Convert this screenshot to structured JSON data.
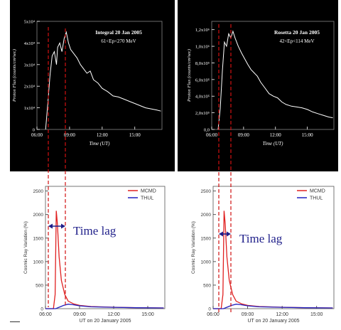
{
  "chart_data": [
    {
      "type": "line",
      "panel": "top-left",
      "title": "Integral 20 Jan 2005",
      "subtitle": "61<Ep<270 MeV",
      "xlabel": "Time (UT)",
      "ylabel": "Proton Flux (counts/cm²sec)",
      "x_ticks": [
        "06:00",
        "09:00",
        "12:00",
        "15:00"
      ],
      "y_ticks": [
        "0",
        "1x10⁴",
        "2x10⁴",
        "3x10⁴",
        "4x10⁴",
        "5x10⁴"
      ],
      "xlim": [
        6.0,
        17.5
      ],
      "ylim": [
        0,
        50000
      ],
      "series": [
        {
          "color": "#ffffff",
          "points": [
            [
              6.8,
              0
            ],
            [
              7.0,
              12000
            ],
            [
              7.2,
              25000
            ],
            [
              7.4,
              34000
            ],
            [
              7.6,
              36000
            ],
            [
              7.8,
              30000
            ],
            [
              7.9,
              38000
            ],
            [
              8.1,
              40000
            ],
            [
              8.3,
              36000
            ],
            [
              8.5,
              42000
            ],
            [
              8.7,
              45000
            ],
            [
              8.9,
              40000
            ],
            [
              9.1,
              37000
            ],
            [
              9.4,
              35000
            ],
            [
              9.7,
              33000
            ],
            [
              10.0,
              30000
            ],
            [
              10.3,
              28000
            ],
            [
              10.6,
              26000
            ],
            [
              10.9,
              27000
            ],
            [
              11.2,
              23000
            ],
            [
              11.6,
              21500
            ],
            [
              12.0,
              19000
            ],
            [
              12.5,
              17500
            ],
            [
              13.0,
              15500
            ],
            [
              13.5,
              15000
            ],
            [
              14.0,
              14000
            ],
            [
              14.5,
              13000
            ],
            [
              15.0,
              12000
            ],
            [
              15.5,
              11000
            ],
            [
              16.0,
              10000
            ],
            [
              16.5,
              9500
            ],
            [
              17.0,
              9000
            ],
            [
              17.4,
              8500
            ]
          ]
        }
      ]
    },
    {
      "type": "line",
      "panel": "top-right",
      "title": "Rosetta 20 Jan 2005",
      "subtitle": "42<Ep<114 MeV",
      "xlabel": "Time (UT)",
      "ylabel": "Proton Flux (counts/cm²sec)",
      "x_ticks": [
        "06:00",
        "09:00",
        "12:00",
        "15:00"
      ],
      "y_ticks": [
        "0,0",
        "2,0x10⁵",
        "4,0x10⁵",
        "6,0x10⁵",
        "8,0x10⁵",
        "1,0x10⁶",
        "1,2x10⁶"
      ],
      "xlim": [
        6.0,
        17.5
      ],
      "ylim": [
        0,
        1300000
      ],
      "series": [
        {
          "color": "#ffffff",
          "points": [
            [
              6.6,
              0
            ],
            [
              6.8,
              250000
            ],
            [
              7.0,
              700000
            ],
            [
              7.2,
              1050000
            ],
            [
              7.4,
              1000000
            ],
            [
              7.6,
              1150000
            ],
            [
              7.8,
              1100000
            ],
            [
              8.0,
              1180000
            ],
            [
              8.2,
              1100000
            ],
            [
              8.5,
              1000000
            ],
            [
              8.8,
              920000
            ],
            [
              9.1,
              850000
            ],
            [
              9.4,
              780000
            ],
            [
              9.7,
              720000
            ],
            [
              10.0,
              680000
            ],
            [
              10.3,
              640000
            ],
            [
              10.6,
              570000
            ],
            [
              11.0,
              500000
            ],
            [
              11.4,
              430000
            ],
            [
              11.8,
              400000
            ],
            [
              12.2,
              380000
            ],
            [
              12.6,
              330000
            ],
            [
              13.0,
              300000
            ],
            [
              13.5,
              280000
            ],
            [
              14.0,
              270000
            ],
            [
              14.5,
              260000
            ],
            [
              15.0,
              240000
            ],
            [
              15.5,
              210000
            ],
            [
              16.0,
              190000
            ],
            [
              16.5,
              170000
            ],
            [
              17.0,
              150000
            ],
            [
              17.4,
              140000
            ]
          ]
        }
      ]
    },
    {
      "type": "line",
      "panel": "bottom-left",
      "xlabel": "UT on 20 January 2005",
      "ylabel": "Cosmic Ray Variation (%)",
      "x_ticks": [
        "06:00",
        "09:00",
        "12:00",
        "15:00"
      ],
      "y_ticks": [
        "0",
        "500",
        "1000",
        "1500",
        "2000",
        "2500"
      ],
      "xlim": [
        6.0,
        16.5
      ],
      "ylim": [
        0,
        2600
      ],
      "legend": "top-right",
      "series": [
        {
          "name": "MCMD",
          "color": "#e02020",
          "points": [
            [
              6.0,
              0
            ],
            [
              6.7,
              0
            ],
            [
              6.85,
              300
            ],
            [
              6.95,
              2080
            ],
            [
              7.05,
              1800
            ],
            [
              7.2,
              1100
            ],
            [
              7.4,
              600
            ],
            [
              7.7,
              300
            ],
            [
              8.0,
              160
            ],
            [
              8.5,
              100
            ],
            [
              9.0,
              70
            ],
            [
              10.0,
              45
            ],
            [
              12.0,
              30
            ],
            [
              14.0,
              20
            ],
            [
              16.4,
              15
            ]
          ]
        },
        {
          "name": "THUL",
          "color": "#2020c0",
          "points": [
            [
              6.0,
              0
            ],
            [
              6.9,
              0
            ],
            [
              7.2,
              30
            ],
            [
              7.6,
              70
            ],
            [
              8.0,
              95
            ],
            [
              8.4,
              85
            ],
            [
              9.0,
              60
            ],
            [
              10.0,
              40
            ],
            [
              12.0,
              28
            ],
            [
              14.0,
              20
            ],
            [
              16.4,
              15
            ]
          ]
        }
      ],
      "annotation": "Time lag"
    },
    {
      "type": "line",
      "panel": "bottom-right",
      "xlabel": "UT on 20 January 2005",
      "ylabel": "Cosmic Ray Variation (%)",
      "x_ticks": [
        "06:00",
        "09:00",
        "12:00",
        "15:00"
      ],
      "y_ticks": [
        "0",
        "500",
        "1000",
        "1500",
        "2000",
        "2500"
      ],
      "xlim": [
        6.0,
        16.5
      ],
      "ylim": [
        0,
        2600
      ],
      "legend": "top-right",
      "series": [
        {
          "name": "MCMD",
          "color": "#e02020",
          "points": [
            [
              6.0,
              0
            ],
            [
              6.7,
              0
            ],
            [
              6.85,
              300
            ],
            [
              6.95,
              2080
            ],
            [
              7.05,
              1800
            ],
            [
              7.2,
              1100
            ],
            [
              7.4,
              600
            ],
            [
              7.7,
              300
            ],
            [
              8.0,
              160
            ],
            [
              8.5,
              100
            ],
            [
              9.0,
              70
            ],
            [
              10.0,
              45
            ],
            [
              12.0,
              30
            ],
            [
              14.0,
              20
            ],
            [
              16.4,
              15
            ]
          ]
        },
        {
          "name": "THUL",
          "color": "#2020c0",
          "points": [
            [
              6.0,
              0
            ],
            [
              6.9,
              0
            ],
            [
              7.2,
              30
            ],
            [
              7.6,
              70
            ],
            [
              8.0,
              95
            ],
            [
              8.4,
              85
            ],
            [
              9.0,
              60
            ],
            [
              10.0,
              40
            ],
            [
              12.0,
              28
            ],
            [
              14.0,
              20
            ],
            [
              16.4,
              15
            ]
          ]
        }
      ],
      "annotation": "Time lag"
    }
  ]
}
